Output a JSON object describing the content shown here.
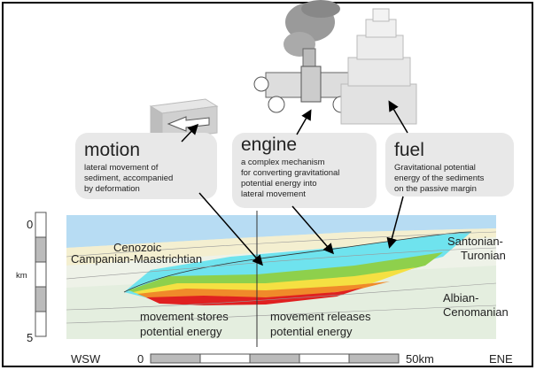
{
  "motion": {
    "title": "motion",
    "lines": [
      "lateral movement of",
      "sediment, accompanied",
      "by deformation"
    ]
  },
  "engine": {
    "title": "engine",
    "lines": [
      "a complex mechanism",
      "for converting gravitational",
      "potential energy into",
      "lateral movement"
    ]
  },
  "fuel": {
    "title": "fuel",
    "lines": [
      "Gravitational potential",
      "energy of the sediments",
      "on the passive margin"
    ]
  },
  "section": {
    "labels": [
      "Cenozoic",
      "Campanian-Maastrichtian"
    ],
    "right_upper": [
      "Santonian-",
      "Turonian"
    ],
    "right_lower": [
      "Albian-",
      "Cenomanian"
    ],
    "left_caption": [
      "movement stores",
      "potential energy"
    ],
    "right_caption": [
      "movement releases",
      "potential energy"
    ]
  },
  "depth_scale": {
    "top": "0",
    "unit": "km",
    "bottom": "5"
  },
  "distance_scale": {
    "west": "WSW",
    "start": "0",
    "end": "50km",
    "east": "ENE"
  }
}
